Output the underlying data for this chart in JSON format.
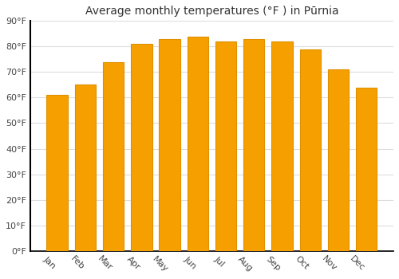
{
  "title": "Average monthly temperatures (°F ) in Pūrnia",
  "months": [
    "Jan",
    "Feb",
    "Mar",
    "Apr",
    "May",
    "Jun",
    "Jul",
    "Aug",
    "Sep",
    "Oct",
    "Nov",
    "Dec"
  ],
  "values": [
    61,
    65,
    74,
    81,
    83,
    84,
    82,
    83,
    82,
    79,
    71,
    64
  ],
  "bar_color_light": "#FFB732",
  "bar_color_dark": "#F5A000",
  "bar_edge_color": "#E09000",
  "background_color": "#FFFFFF",
  "grid_color": "#DDDDDD",
  "spine_color": "#000000",
  "ylim": [
    0,
    90
  ],
  "yticks": [
    0,
    10,
    20,
    30,
    40,
    50,
    60,
    70,
    80,
    90
  ],
  "ytick_labels": [
    "0°F",
    "10°F",
    "20°F",
    "30°F",
    "40°F",
    "50°F",
    "60°F",
    "70°F",
    "80°F",
    "90°F"
  ],
  "title_fontsize": 10,
  "tick_fontsize": 8,
  "bar_width": 0.75,
  "xlabel_rotation": -45
}
